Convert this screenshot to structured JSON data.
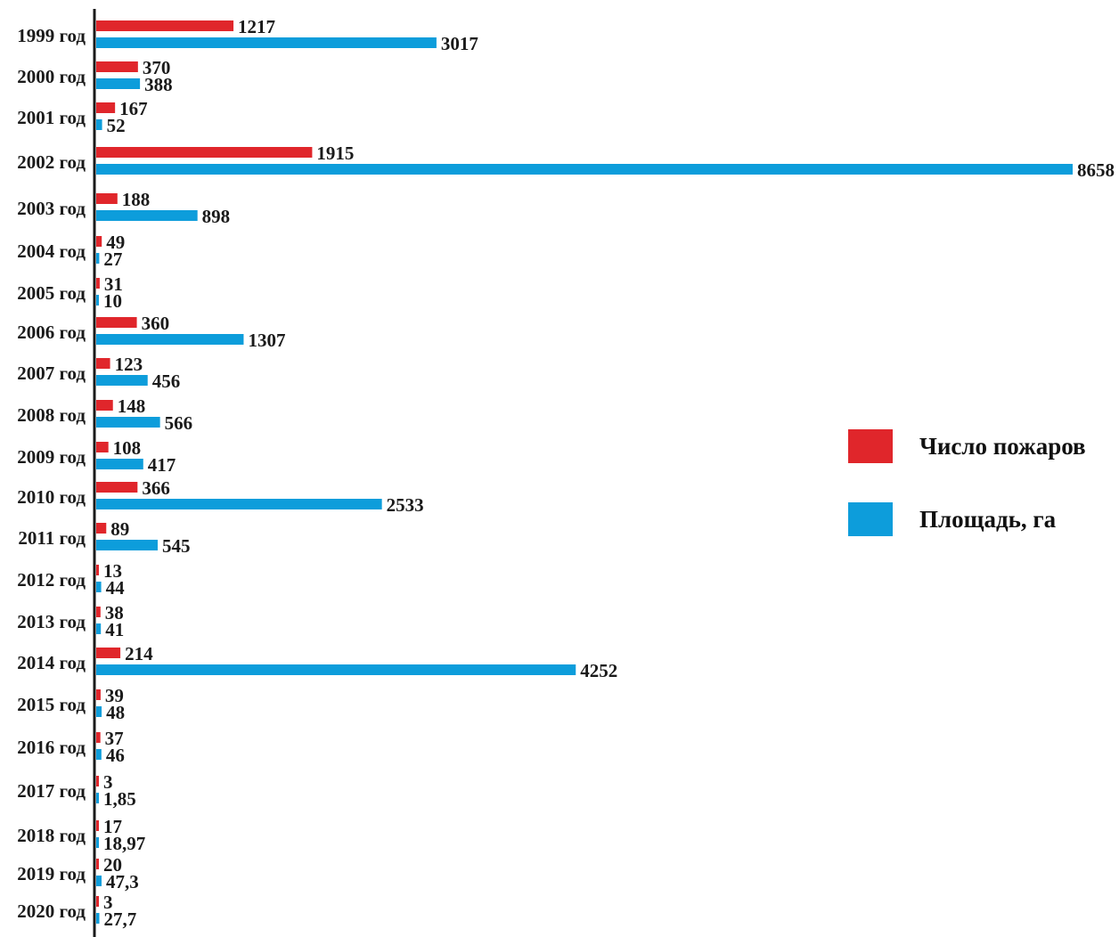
{
  "chart_data": {
    "type": "bar",
    "orientation": "horizontal",
    "categories": [
      "1999 год",
      "2000 год",
      "2001 год",
      "2002 год",
      "2003 год",
      "2004 год",
      "2005 год",
      "2006 год",
      "2007 год",
      "2008 год",
      "2009 год",
      "2010 год",
      "2011 год",
      "2012 год",
      "2013 год",
      "2014 год",
      "2015 год",
      "2016 год",
      "2017 год",
      "2018 год",
      "2019 год",
      "2020 год"
    ],
    "series": [
      {
        "name": "Число пожаров",
        "color": "#e0262b",
        "values": [
          1217,
          370,
          167,
          1915,
          188,
          49,
          31,
          360,
          123,
          148,
          108,
          366,
          89,
          13,
          38,
          214,
          39,
          37,
          3,
          17,
          20,
          3
        ],
        "labels": [
          "1217",
          "370",
          "167",
          "1915",
          "188",
          "49",
          "31",
          "360",
          "123",
          "148",
          "108",
          "366",
          "89",
          "13",
          "38",
          "214",
          "39",
          "37",
          "3",
          "17",
          "20",
          "3"
        ]
      },
      {
        "name": "Площадь, га",
        "color": "#0d9ddb",
        "values": [
          3017,
          388,
          52,
          8658,
          898,
          27,
          10,
          1307,
          456,
          566,
          417,
          2533,
          545,
          44,
          41,
          4252,
          48,
          46,
          1.85,
          18.97,
          47.3,
          27.7
        ],
        "labels": [
          "3017",
          "388",
          "52",
          "8658",
          "898",
          "27",
          "10",
          "1307",
          "456",
          "566",
          "417",
          "2533",
          "545",
          "44",
          "41",
          "4252",
          "48",
          "46",
          "1,85",
          "18,97",
          "47,3",
          "27,7"
        ]
      }
    ],
    "xlabel": "",
    "ylabel": "",
    "grid": false,
    "legend_position": "right"
  }
}
